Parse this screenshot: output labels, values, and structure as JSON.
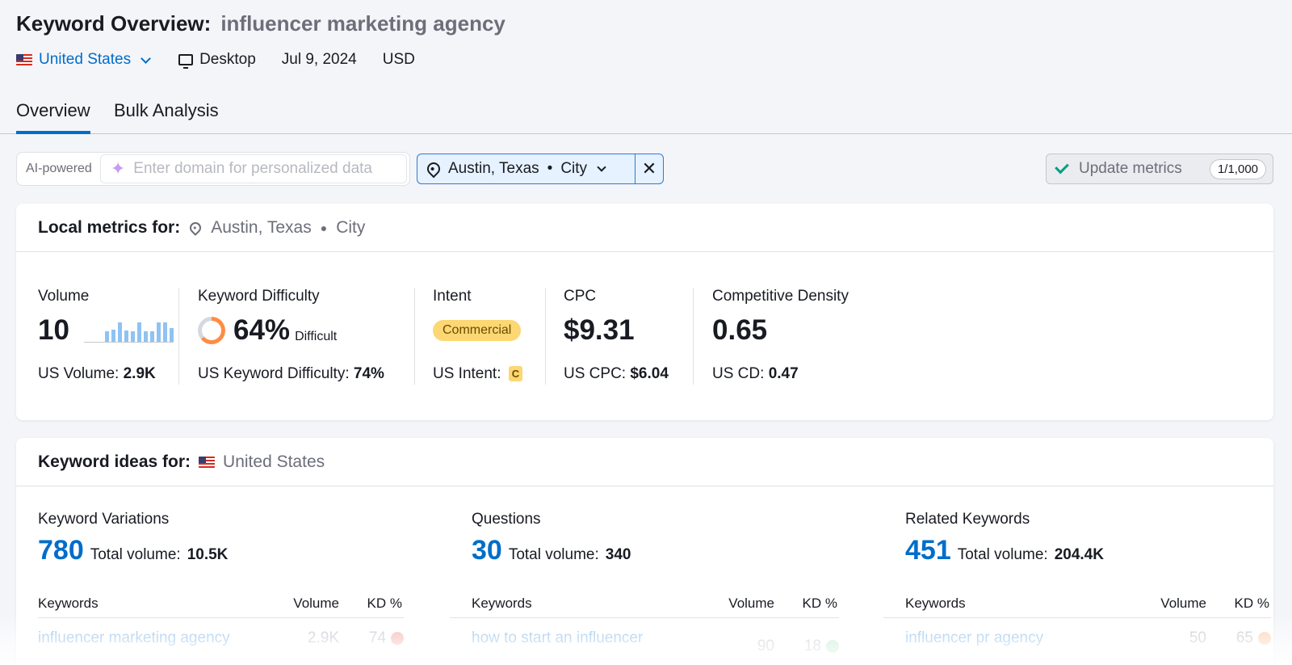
{
  "header": {
    "title": "Keyword Overview:",
    "keyword": "influencer marketing agency",
    "country": "United States",
    "device": "Desktop",
    "date": "Jul 9, 2024",
    "currency": "USD"
  },
  "tabs": [
    {
      "label": "Overview",
      "active": true
    },
    {
      "label": "Bulk Analysis",
      "active": false
    }
  ],
  "toolbar": {
    "ai_label": "AI-powered",
    "ai_placeholder": "Enter domain for personalized data",
    "location_city": "Austin, Texas",
    "location_type": "City",
    "update_label": "Update metrics",
    "update_count": "1/1,000"
  },
  "local_metrics": {
    "heading": "Local metrics for:",
    "location_city": "Austin, Texas",
    "location_type": "City",
    "volume": {
      "label": "Volume",
      "value": "10",
      "sub_label": "US Volume:",
      "sub_value": "2.9K",
      "trend": [
        0.45,
        0.55,
        0.85,
        0.5,
        0.45,
        0.85,
        0.45,
        0.45,
        0.85,
        0.85,
        0.6
      ]
    },
    "kd": {
      "label": "Keyword Difficulty",
      "value": "64%",
      "level": "Difficult",
      "percent": 64,
      "sub_label": "US Keyword Difficulty:",
      "sub_value": "74%",
      "color": "#ff8c43"
    },
    "intent": {
      "label": "Intent",
      "value": "Commercial",
      "sub_label": "US Intent:",
      "sub_value": "C",
      "color": "#fcd773"
    },
    "cpc": {
      "label": "CPC",
      "value": "$9.31",
      "sub_label": "US CPC:",
      "sub_value": "$6.04"
    },
    "cd": {
      "label": "Competitive Density",
      "value": "0.65",
      "sub_label": "US CD:",
      "sub_value": "0.47"
    }
  },
  "keyword_ideas": {
    "heading": "Keyword ideas for:",
    "country": "United States",
    "total_label": "Total volume:",
    "columns": [
      {
        "title": "Keyword Variations",
        "count": "780",
        "total_volume": "10.5K",
        "headers": [
          "Keywords",
          "Volume",
          "KD %"
        ],
        "row": {
          "keyword": "influencer marketing agency",
          "volume": "2.9K",
          "kd": "74",
          "kd_color": "#f5b5b0"
        }
      },
      {
        "title": "Questions",
        "count": "30",
        "total_volume": "340",
        "headers": [
          "Keywords",
          "Volume",
          "KD %"
        ],
        "row": {
          "keyword": "how to start an influencer",
          "volume": "90",
          "kd": "18",
          "kd_color": "#bfe8cf"
        }
      },
      {
        "title": "Related Keywords",
        "count": "451",
        "total_volume": "204.4K",
        "headers": [
          "Keywords",
          "Volume",
          "KD %"
        ],
        "row": {
          "keyword": "influencer pr agency",
          "volume": "50",
          "kd": "65",
          "kd_color": "#fbd0b0"
        }
      }
    ]
  },
  "colors": {
    "accent": "#006dca",
    "background": "#f4f5f9"
  }
}
